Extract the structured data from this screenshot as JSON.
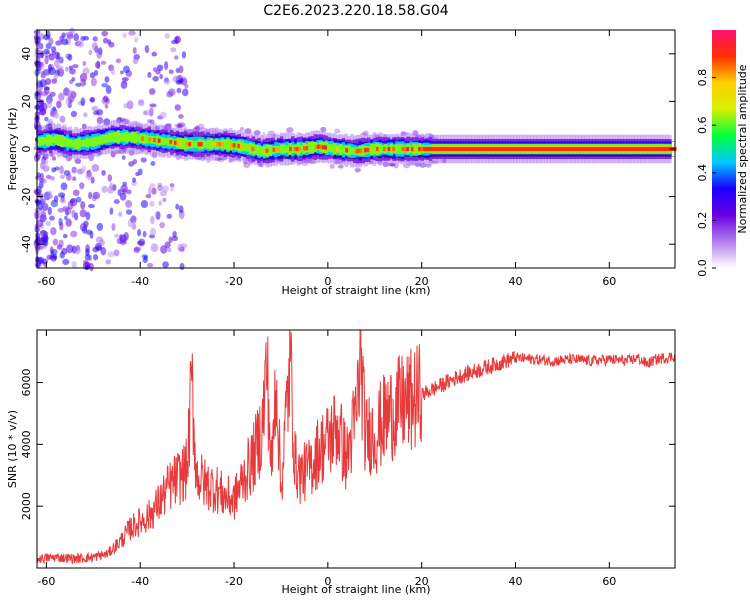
{
  "figure_title": "C2E6.2023.220.18.58.G04",
  "chart_data": [
    {
      "type": "heatmap",
      "xlabel": "Height of straight line (km)",
      "ylabel": "Frequency (Hz)",
      "xlim": [
        -62,
        74
      ],
      "ylim": [
        -50,
        50
      ],
      "xticks": [
        -60,
        -40,
        -20,
        0,
        20,
        40,
        60
      ],
      "yticks": [
        -40,
        -20,
        0,
        20,
        40
      ],
      "grid": false,
      "colorbar": {
        "label": "Normalized spectral amplitude",
        "range": [
          0,
          1
        ],
        "ticks": [
          0.0,
          0.2,
          0.4,
          0.6,
          0.8
        ],
        "tick_labels": [
          "0.0",
          "0.2",
          "0.4",
          "0.6",
          "0.8"
        ],
        "colormap": [
          "#ffffff",
          "#b27ff0",
          "#6a00e0",
          "#1a00ff",
          "#00c8ff",
          "#00ff3c",
          "#d8f000",
          "#ffd000",
          "#ff3000",
          "#ff1070"
        ]
      },
      "ridge": {
        "x": [
          -62,
          -58,
          -54,
          -50,
          -46,
          -42,
          -38,
          -34,
          -30,
          -26,
          -22,
          -18,
          -14,
          -10,
          -6,
          -2,
          2,
          6,
          10,
          14,
          18,
          22,
          30,
          40,
          50,
          60,
          74
        ],
        "freq": [
          3,
          4,
          2,
          3,
          5,
          5,
          4,
          3,
          2,
          2,
          2,
          1,
          -1,
          0,
          0,
          1,
          0,
          -1,
          0,
          0,
          0,
          0,
          0,
          0,
          0,
          0,
          0
        ]
      }
    },
    {
      "type": "line",
      "xlabel": "Height of straight line (km)",
      "ylabel": "SNR (10 * v/v)",
      "xlim": [
        -62,
        74
      ],
      "ylim": [
        0,
        7700
      ],
      "xticks": [
        -60,
        -40,
        -20,
        0,
        20,
        40,
        60
      ],
      "yticks": [
        2000,
        4000,
        6000
      ],
      "color": "#e83a3a",
      "grid": false,
      "series": [
        {
          "x": [
            -62,
            -58,
            -54,
            -50,
            -47,
            -44,
            -42,
            -40,
            -38,
            -36,
            -34,
            -32,
            -30,
            -29,
            -28,
            -26,
            -24,
            -22,
            -20,
            -18,
            -16,
            -14,
            -13,
            -12,
            -11,
            -10,
            -9,
            -8,
            -7,
            -6,
            -4,
            -2,
            0,
            2,
            4,
            6,
            7,
            8,
            9,
            10,
            12,
            14,
            16,
            18,
            20,
            24,
            28,
            32,
            36,
            40,
            44,
            48,
            52,
            56,
            60,
            64,
            66,
            68,
            70,
            72,
            74
          ],
          "y": [
            300,
            350,
            300,
            350,
            450,
            900,
            1300,
            1500,
            1700,
            2100,
            2600,
            2900,
            3200,
            6000,
            3000,
            2700,
            2600,
            2300,
            2200,
            2900,
            3500,
            4500,
            6600,
            3000,
            6400,
            2500,
            4700,
            6700,
            3400,
            3000,
            3200,
            3800,
            4100,
            4600,
            3500,
            4900,
            6800,
            4200,
            4400,
            4300,
            4800,
            5100,
            5300,
            5400,
            5600,
            5900,
            6200,
            6400,
            6600,
            6800,
            6750,
            6700,
            6750,
            6700,
            6750,
            6700,
            6800,
            6600,
            6750,
            6800,
            6850
          ]
        }
      ]
    }
  ]
}
